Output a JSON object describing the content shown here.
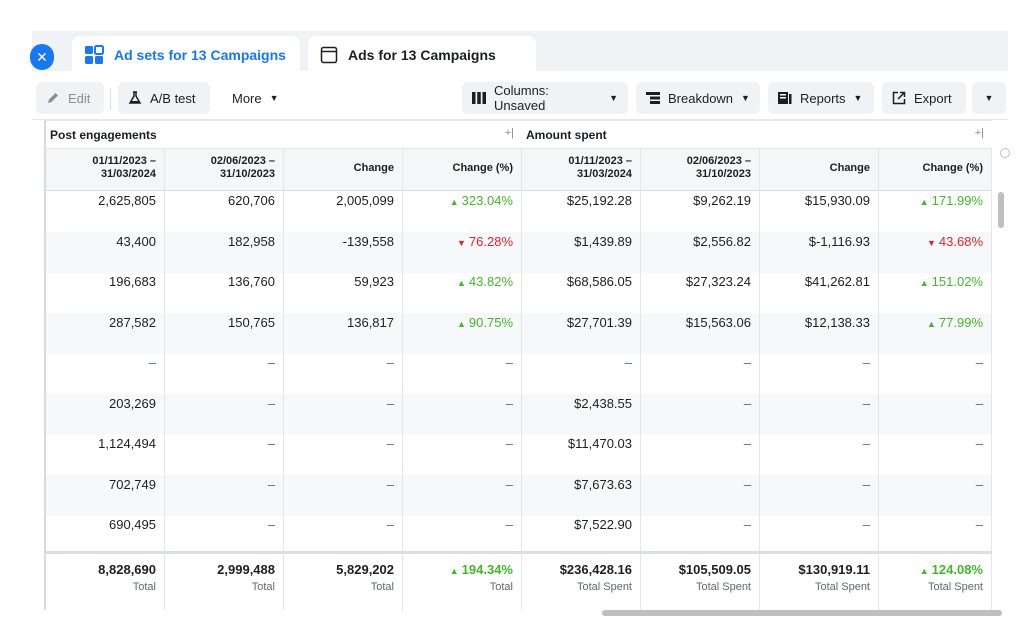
{
  "tabs": [
    {
      "label": "Ad sets for 13 Campaigns",
      "icon": "ad-sets-grid-icon"
    },
    {
      "label": "Ads for 13 Campaigns",
      "icon": "ad-window-icon"
    }
  ],
  "toolbar": {
    "edit_label": "Edit",
    "ab_test_label": "A/B test",
    "more_label": "More",
    "columns_label": "Columns: Unsaved",
    "breakdown_label": "Breakdown",
    "reports_label": "Reports",
    "export_label": "Export"
  },
  "groups": [
    {
      "title": "Post engagements"
    },
    {
      "title": "Amount spent"
    }
  ],
  "columns": [
    {
      "label": "01/11/2023 –\n31/03/2024"
    },
    {
      "label": "02/06/2023 –\n31/10/2023"
    },
    {
      "label": "Change"
    },
    {
      "label": "Change (%)"
    },
    {
      "label": "01/11/2023 –\n31/03/2024"
    },
    {
      "label": "02/06/2023 –\n31/10/2023"
    },
    {
      "label": "Change"
    },
    {
      "label": "Change (%)"
    }
  ],
  "rows": [
    [
      "2,625,805",
      "620,706",
      "2,005,099",
      "323.04%",
      "$25,192.28",
      "$9,262.19",
      "$15,930.09",
      "171.99%"
    ],
    [
      "43,400",
      "182,958",
      "-139,558",
      "76.28%",
      "$1,439.89",
      "$2,556.82",
      "$-1,116.93",
      "43.68%"
    ],
    [
      "196,683",
      "136,760",
      "59,923",
      "43.82%",
      "$68,586.05",
      "$27,323.24",
      "$41,262.81",
      "151.02%"
    ],
    [
      "287,582",
      "150,765",
      "136,817",
      "90.75%",
      "$27,701.39",
      "$15,563.06",
      "$12,138.33",
      "77.99%"
    ],
    [
      "–",
      "–",
      "–",
      "–",
      "–",
      "–",
      "–",
      "–"
    ],
    [
      "203,269",
      "–",
      "–",
      "–",
      "$2,438.55",
      "–",
      "–",
      "–"
    ],
    [
      "1,124,494",
      "–",
      "–",
      "–",
      "$11,470.03",
      "–",
      "–",
      "–"
    ],
    [
      "702,749",
      "–",
      "–",
      "–",
      "$7,673.63",
      "–",
      "–",
      "–"
    ],
    [
      "690,495",
      "–",
      "–",
      "–",
      "$7,522.90",
      "–",
      "–",
      "–"
    ]
  ],
  "change_direction": [
    [
      "up",
      "up"
    ],
    [
      "down",
      "down"
    ],
    [
      "up",
      "up"
    ],
    [
      "up",
      "up"
    ],
    [
      "none",
      "none"
    ],
    [
      "none",
      "none"
    ],
    [
      "none",
      "none"
    ],
    [
      "none",
      "none"
    ],
    [
      "none",
      "none"
    ]
  ],
  "totals": [
    {
      "value": "8,828,690",
      "label": "Total"
    },
    {
      "value": "2,999,488",
      "label": "Total"
    },
    {
      "value": "5,829,202",
      "label": "Total"
    },
    {
      "value": "194.34%",
      "label": "Total"
    },
    {
      "value": "$236,428.16",
      "label": "Total Spent"
    },
    {
      "value": "$105,509.05",
      "label": "Total Spent"
    },
    {
      "value": "$130,919.11",
      "label": "Total Spent"
    },
    {
      "value": "124.08%",
      "label": "Total Spent"
    }
  ],
  "colors": {
    "accent": "#1877f2",
    "up": "#42b72a",
    "down": "#e4232e"
  }
}
